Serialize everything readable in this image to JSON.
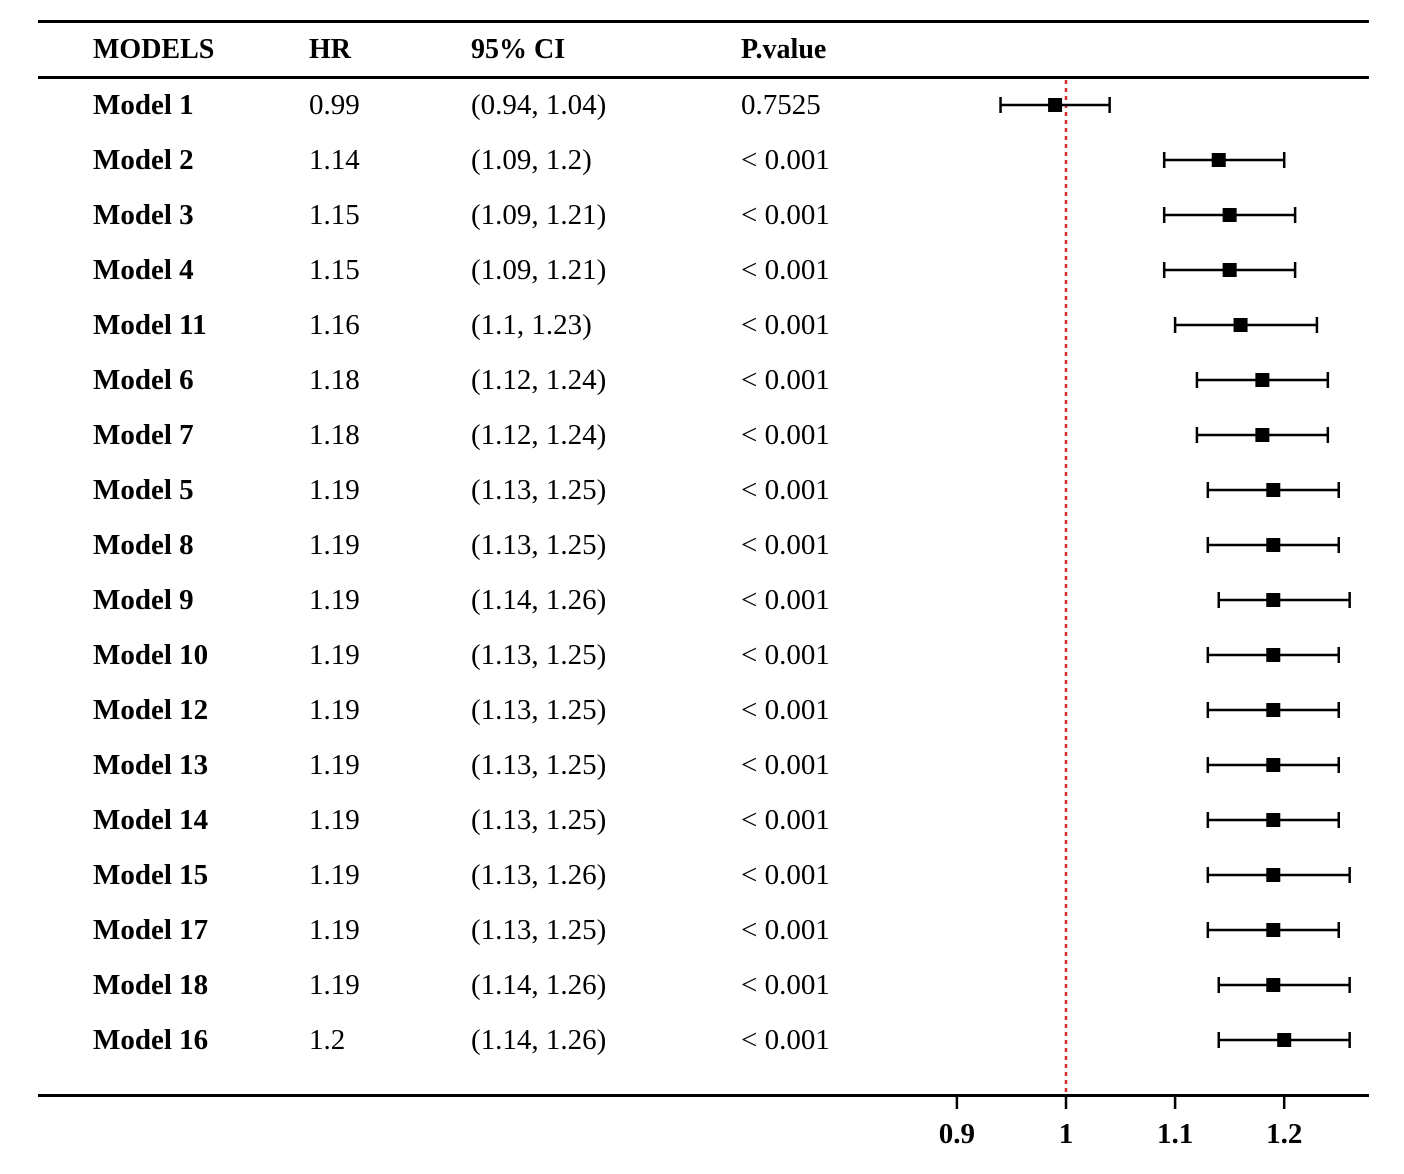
{
  "table": {
    "headers": {
      "model": "MODELS",
      "hr": "HR",
      "ci": "95% CI",
      "p": "P.value"
    },
    "rows": [
      {
        "model": "Model 1",
        "hr": "0.99",
        "ci": "(0.94, 1.04)",
        "p": "0.7525"
      },
      {
        "model": "Model 2",
        "hr": "1.14",
        "ci": "(1.09, 1.2)",
        "p": "< 0.001"
      },
      {
        "model": "Model 3",
        "hr": "1.15",
        "ci": "(1.09, 1.21)",
        "p": "< 0.001"
      },
      {
        "model": "Model 4",
        "hr": "1.15",
        "ci": "(1.09, 1.21)",
        "p": "< 0.001"
      },
      {
        "model": "Model 11",
        "hr": "1.16",
        "ci": "(1.1, 1.23)",
        "p": "< 0.001"
      },
      {
        "model": "Model 6",
        "hr": "1.18",
        "ci": "(1.12, 1.24)",
        "p": "< 0.001"
      },
      {
        "model": "Model 7",
        "hr": "1.18",
        "ci": "(1.12, 1.24)",
        "p": "< 0.001"
      },
      {
        "model": "Model 5",
        "hr": "1.19",
        "ci": "(1.13, 1.25)",
        "p": "< 0.001"
      },
      {
        "model": "Model 8",
        "hr": "1.19",
        "ci": "(1.13, 1.25)",
        "p": "< 0.001"
      },
      {
        "model": "Model 9",
        "hr": "1.19",
        "ci": "(1.14, 1.26)",
        "p": "< 0.001"
      },
      {
        "model": "Model 10",
        "hr": "1.19",
        "ci": "(1.13, 1.25)",
        "p": "< 0.001"
      },
      {
        "model": "Model 12",
        "hr": "1.19",
        "ci": "(1.13, 1.25)",
        "p": "< 0.001"
      },
      {
        "model": "Model 13",
        "hr": "1.19",
        "ci": "(1.13, 1.25)",
        "p": "< 0.001"
      },
      {
        "model": "Model 14",
        "hr": "1.19",
        "ci": "(1.13, 1.25)",
        "p": "< 0.001"
      },
      {
        "model": "Model 15",
        "hr": "1.19",
        "ci": "(1.13, 1.26)",
        "p": "< 0.001"
      },
      {
        "model": "Model 17",
        "hr": "1.19",
        "ci": "(1.13, 1.25)",
        "p": "< 0.001"
      },
      {
        "model": "Model 18",
        "hr": "1.19",
        "ci": "(1.14, 1.26)",
        "p": "< 0.001"
      },
      {
        "model": "Model 16",
        "hr": "1.2",
        "ci": "(1.14, 1.26)",
        "p": "< 0.001"
      }
    ]
  },
  "chart_data": {
    "type": "forest",
    "categories": [
      "Model 1",
      "Model 2",
      "Model 3",
      "Model 4",
      "Model 11",
      "Model 6",
      "Model 7",
      "Model 5",
      "Model 8",
      "Model 9",
      "Model 10",
      "Model 12",
      "Model 13",
      "Model 14",
      "Model 15",
      "Model 17",
      "Model 18",
      "Model 16"
    ],
    "estimates": [
      0.99,
      1.14,
      1.15,
      1.15,
      1.16,
      1.18,
      1.18,
      1.19,
      1.19,
      1.19,
      1.19,
      1.19,
      1.19,
      1.19,
      1.19,
      1.19,
      1.19,
      1.2
    ],
    "lower": [
      0.94,
      1.09,
      1.09,
      1.09,
      1.1,
      1.12,
      1.12,
      1.13,
      1.13,
      1.14,
      1.13,
      1.13,
      1.13,
      1.13,
      1.13,
      1.13,
      1.14,
      1.14
    ],
    "upper": [
      1.04,
      1.2,
      1.21,
      1.21,
      1.23,
      1.24,
      1.24,
      1.25,
      1.25,
      1.26,
      1.25,
      1.25,
      1.25,
      1.25,
      1.26,
      1.25,
      1.26,
      1.26
    ],
    "reference_line": 1,
    "reference_color": "#d32f2f",
    "xlim": [
      0.9,
      1.26
    ],
    "xticks": [
      0.9,
      1,
      1.1,
      1.2
    ],
    "xtick_labels": [
      "0.9",
      "1",
      "1.1",
      "1.2"
    ],
    "marker_color": "#000000",
    "grid": false
  }
}
